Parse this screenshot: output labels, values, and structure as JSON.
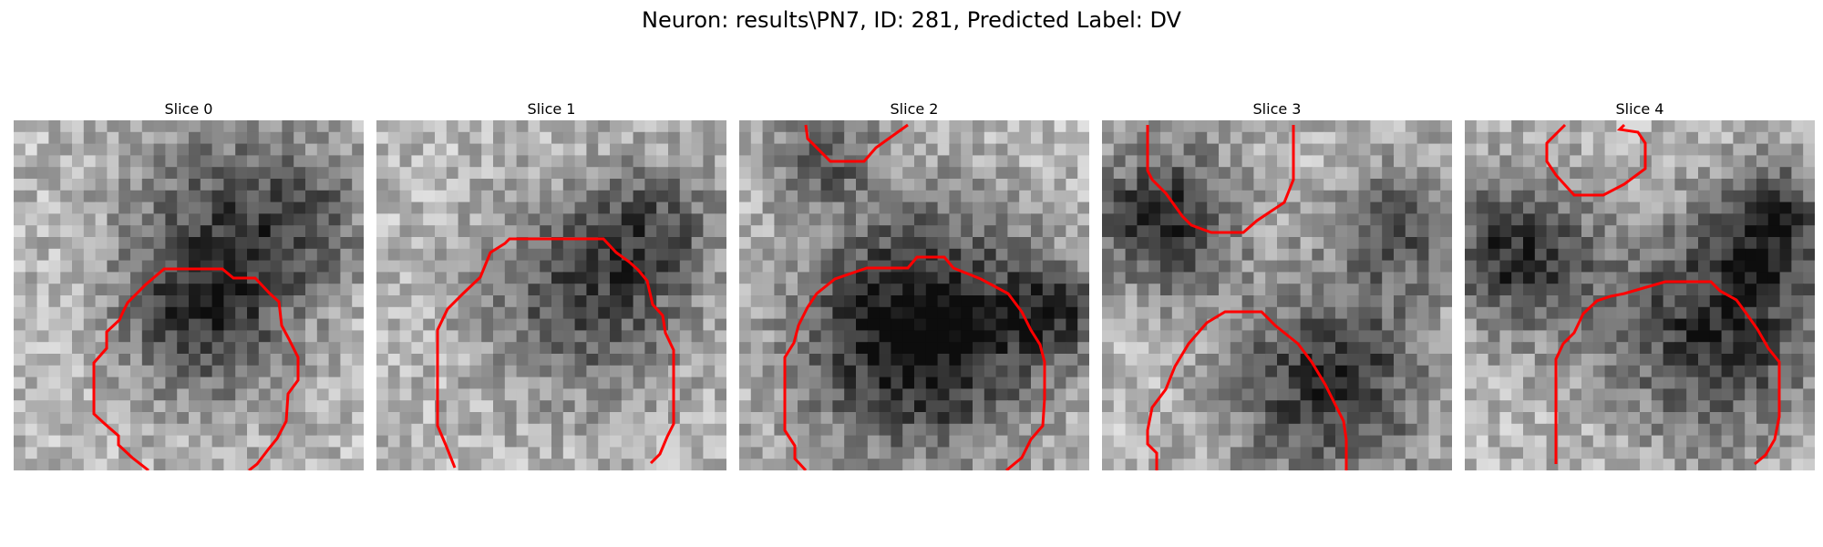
{
  "figure": {
    "title": "Neuron: results\\PN7, ID: 281, Predicted Label: DV",
    "contour_color": "#ff0000",
    "panels": [
      {
        "label": "Slice 0",
        "seed": 11,
        "center": [
          0.5,
          0.7
        ],
        "radius": [
          0.33,
          0.28
        ],
        "dark": [
          [
            0.55,
            0.55,
            0.24,
            0.55
          ],
          [
            0.82,
            0.28,
            0.2,
            0.35
          ],
          [
            0.55,
            0.2,
            0.25,
            0.25
          ]
        ]
      },
      {
        "label": "Slice 1",
        "seed": 23,
        "center": [
          0.55,
          0.65
        ],
        "radius": [
          0.4,
          0.32
        ],
        "dark": [
          [
            0.6,
            0.5,
            0.28,
            0.45
          ],
          [
            0.8,
            0.3,
            0.18,
            0.3
          ]
        ]
      },
      {
        "label": "Slice 2",
        "seed": 37,
        "center": [
          0.52,
          0.58
        ],
        "radius": [
          0.38,
          0.42
        ],
        "dark": [
          [
            0.52,
            0.6,
            0.33,
            0.75
          ],
          [
            0.25,
            0.1,
            0.14,
            0.35
          ],
          [
            0.9,
            0.55,
            0.14,
            0.4
          ]
        ]
      },
      {
        "label": "Slice 3",
        "seed": 49,
        "center": [
          0.6,
          0.7
        ],
        "radius": [
          0.35,
          0.3
        ],
        "dark": [
          [
            0.65,
            0.75,
            0.28,
            0.55
          ],
          [
            0.18,
            0.28,
            0.2,
            0.6
          ],
          [
            0.85,
            0.3,
            0.18,
            0.4
          ]
        ]
      },
      {
        "label": "Slice 4",
        "seed": 61,
        "center": [
          0.62,
          0.72
        ],
        "radius": [
          0.38,
          0.3
        ],
        "dark": [
          [
            0.72,
            0.6,
            0.3,
            0.55
          ],
          [
            0.15,
            0.38,
            0.22,
            0.55
          ],
          [
            0.88,
            0.3,
            0.18,
            0.45
          ]
        ]
      }
    ]
  }
}
